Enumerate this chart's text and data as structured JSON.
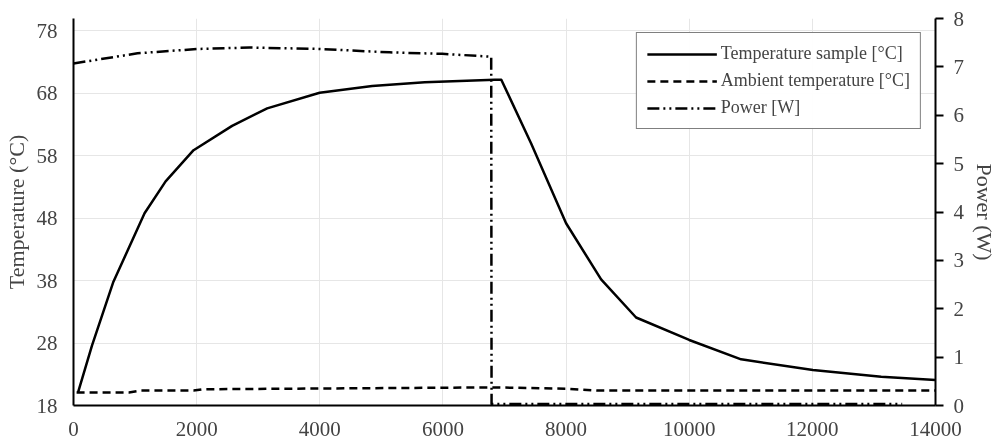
{
  "chart_data": {
    "type": "line",
    "ylabel": "Temperature (°C)",
    "y2label": "Power (W)",
    "xlim": [
      0,
      14000
    ],
    "xticks": [
      0,
      2000,
      4000,
      6000,
      8000,
      10000,
      12000,
      14000
    ],
    "ylim": [
      18,
      80
    ],
    "yticks": [
      18,
      28,
      38,
      48,
      58,
      68,
      78
    ],
    "y2lim": [
      0,
      8
    ],
    "y2ticks": [
      0,
      1,
      2,
      3,
      4,
      5,
      6,
      7,
      8
    ],
    "grid": true,
    "legend": "top right",
    "series": [
      {
        "name": "Temperature sample [°C]",
        "color": "#000000",
        "line_style": "solid",
        "x": [
          74,
          300,
          643,
          1154,
          1496,
          1950,
          2576,
          3145,
          3998,
          4851,
          5704,
          6841,
          6948,
          7431,
          8000,
          8569,
          9137,
          10000,
          10843,
          12009,
          13118,
          14000
        ],
        "values": [
          20.1,
          27.6,
          37.7,
          48.8,
          53.9,
          58.9,
          62.8,
          65.6,
          68.1,
          69.2,
          69.8,
          70.2,
          70.2,
          60.0,
          47.2,
          38.2,
          32.1,
          28.5,
          25.4,
          23.7,
          22.6,
          22.1
        ]
      },
      {
        "name": "Ambient temperature [°C]",
        "color": "#000000",
        "line_style": "dashed",
        "x": [
          50,
          900,
          1100,
          1950,
          2100,
          6800,
          8000,
          8500,
          14000
        ],
        "values": [
          20.1,
          20.1,
          20.4,
          20.4,
          20.6,
          20.9,
          20.7,
          20.4,
          20.4
        ]
      },
      {
        "name": "Power [W]",
        "color": "#000000",
        "line_style": "dashdotdot",
        "axis": "y2",
        "x": [
          0,
          1040,
          2007,
          2860,
          3998,
          5135,
          5988,
          6784,
          6790,
          13459
        ],
        "values": [
          7.07,
          7.28,
          7.37,
          7.4,
          7.37,
          7.3,
          7.27,
          7.21,
          0.03,
          0.03
        ]
      }
    ]
  }
}
